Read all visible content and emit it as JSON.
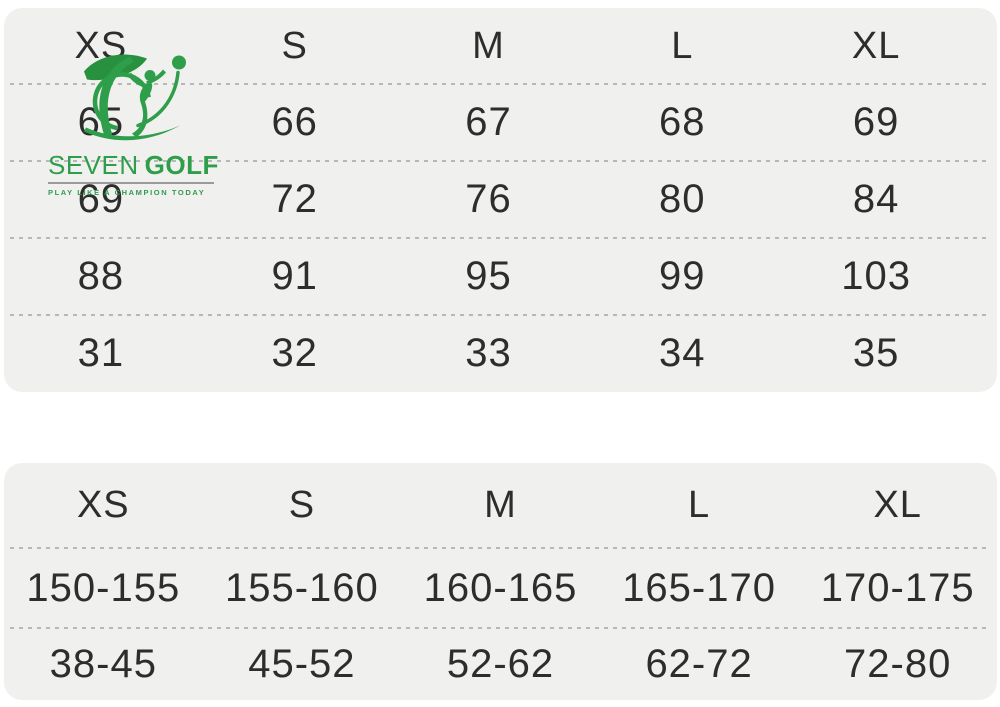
{
  "brand": {
    "name_primary": "SEVEN",
    "name_secondary": "GOLF",
    "tagline": "PLAY LIKE A CHAMPION TODAY"
  },
  "colors": {
    "brand_green": "#2f9e4b",
    "panel_background": "#f0f0ee",
    "page_background": "#ffffff",
    "divider_gray": "#b7b7b7",
    "text_dark": "#2d2d2d"
  },
  "size_chart_top": {
    "columns": [
      "XS",
      "S",
      "M",
      "L",
      "XL"
    ],
    "rows": [
      [
        "65",
        "66",
        "67",
        "68",
        "69"
      ],
      [
        "69",
        "72",
        "76",
        "80",
        "84"
      ],
      [
        "88",
        "91",
        "95",
        "99",
        "103"
      ],
      [
        "31",
        "32",
        "33",
        "34",
        "35"
      ]
    ]
  },
  "size_chart_bottom": {
    "columns": [
      "XS",
      "S",
      "M",
      "L",
      "XL"
    ],
    "rows": [
      [
        "150-155",
        "155-160",
        "160-165",
        "165-170",
        "170-175"
      ],
      [
        "38-45",
        "45-52",
        "52-62",
        "62-72",
        "72-80"
      ]
    ]
  }
}
